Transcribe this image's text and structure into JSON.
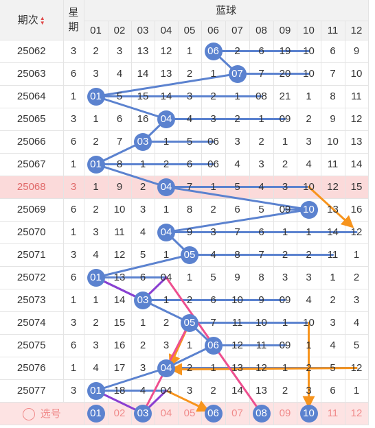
{
  "header": {
    "period_label": "期次",
    "week_label_top": "星",
    "week_label_bottom": "期",
    "blue_title": "蓝球",
    "columns": [
      "01",
      "02",
      "03",
      "04",
      "05",
      "06",
      "07",
      "08",
      "09",
      "10",
      "11",
      "12"
    ]
  },
  "rows": [
    {
      "period": "25062",
      "week": "3",
      "cells": [
        "2",
        "3",
        "13",
        "12",
        "1",
        "06",
        "2",
        "6",
        "19",
        "10",
        "6",
        "9"
      ],
      "hit": 6
    },
    {
      "period": "25063",
      "week": "6",
      "cells": [
        "3",
        "4",
        "14",
        "13",
        "2",
        "1",
        "07",
        "7",
        "20",
        "10",
        "7",
        "10"
      ],
      "hit": 7
    },
    {
      "period": "25064",
      "week": "1",
      "cells": [
        "01",
        "5",
        "15",
        "14",
        "3",
        "2",
        "1",
        "08",
        "21",
        "1",
        "8",
        "11"
      ],
      "hit": 1
    },
    {
      "period": "25065",
      "week": "3",
      "cells": [
        "1",
        "6",
        "16",
        "04",
        "4",
        "3",
        "2",
        "1",
        "09",
        "2",
        "9",
        "12"
      ],
      "hit": 4
    },
    {
      "period": "25066",
      "week": "6",
      "cells": [
        "2",
        "7",
        "03",
        "1",
        "5",
        "06",
        "3",
        "2",
        "1",
        "3",
        "10",
        "13"
      ],
      "hit": 3
    },
    {
      "period": "25067",
      "week": "1",
      "cells": [
        "01",
        "8",
        "1",
        "2",
        "6",
        "06",
        "4",
        "3",
        "2",
        "4",
        "11",
        "14"
      ],
      "hit": 1
    },
    {
      "period": "25068",
      "week": "3",
      "cells": [
        "1",
        "9",
        "2",
        "04",
        "7",
        "1",
        "5",
        "4",
        "3",
        "10",
        "12",
        "15"
      ],
      "hit": 4,
      "highlight": true
    },
    {
      "period": "25069",
      "week": "6",
      "cells": [
        "2",
        "10",
        "3",
        "1",
        "8",
        "2",
        "6",
        "5",
        "09",
        "10",
        "13",
        "16"
      ],
      "hit": 10
    },
    {
      "period": "25070",
      "week": "1",
      "cells": [
        "3",
        "11",
        "4",
        "04",
        "9",
        "3",
        "7",
        "6",
        "1",
        "1",
        "14",
        "12"
      ],
      "hit": 4
    },
    {
      "period": "25071",
      "week": "3",
      "cells": [
        "4",
        "12",
        "5",
        "1",
        "05",
        "4",
        "8",
        "7",
        "2",
        "2",
        "11",
        "1"
      ],
      "hit": 5
    },
    {
      "period": "25072",
      "week": "6",
      "cells": [
        "01",
        "13",
        "6",
        "04",
        "1",
        "5",
        "9",
        "8",
        "3",
        "3",
        "1",
        "2"
      ],
      "hit": 1
    },
    {
      "period": "25073",
      "week": "1",
      "cells": [
        "1",
        "14",
        "03",
        "1",
        "2",
        "6",
        "10",
        "9",
        "09",
        "4",
        "2",
        "3"
      ],
      "hit": 3
    },
    {
      "period": "25074",
      "week": "3",
      "cells": [
        "2",
        "15",
        "1",
        "2",
        "05",
        "7",
        "11",
        "10",
        "1",
        "10",
        "3",
        "4"
      ],
      "hit": 5
    },
    {
      "period": "25075",
      "week": "6",
      "cells": [
        "3",
        "16",
        "2",
        "3",
        "1",
        "06",
        "12",
        "11",
        "09",
        "1",
        "4",
        "5"
      ],
      "hit": 6
    },
    {
      "period": "25076",
      "week": "1",
      "cells": [
        "4",
        "17",
        "3",
        "04",
        "2",
        "1",
        "13",
        "12",
        "1",
        "2",
        "5",
        "12"
      ],
      "hit": 4
    },
    {
      "period": "25077",
      "week": "3",
      "cells": [
        "01",
        "18",
        "4",
        "04",
        "3",
        "2",
        "14",
        "13",
        "2",
        "3",
        "6",
        "1"
      ],
      "hit": 1
    }
  ],
  "footer": {
    "label": "选号",
    "cells": [
      "01",
      "02",
      "03",
      "04",
      "05",
      "06",
      "07",
      "08",
      "09",
      "10",
      "11",
      "12"
    ],
    "selected": [
      1,
      3,
      6,
      8,
      10
    ]
  },
  "colors": {
    "ball": "#5b82cf",
    "line_blue": "#5b82cf",
    "line_orange": "#f7941d",
    "line_pink": "#ee4f8f",
    "line_purple": "#8a3fd1",
    "highlight_row": "#fbdada",
    "footer_text": "#f08a8a"
  }
}
